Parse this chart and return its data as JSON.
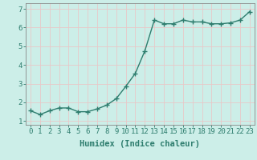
{
  "x": [
    0,
    1,
    2,
    3,
    4,
    5,
    6,
    7,
    8,
    9,
    10,
    11,
    12,
    13,
    14,
    15,
    16,
    17,
    18,
    19,
    20,
    21,
    22,
    23
  ],
  "y": [
    1.55,
    1.35,
    1.55,
    1.7,
    1.7,
    1.5,
    1.5,
    1.65,
    1.85,
    2.2,
    2.85,
    3.55,
    4.75,
    6.4,
    6.2,
    6.2,
    6.4,
    6.3,
    6.3,
    6.2,
    6.2,
    6.25,
    6.4,
    6.85
  ],
  "line_color": "#2e7d6e",
  "marker": "+",
  "marker_size": 4,
  "bg_color": "#cceee8",
  "grid_color": "#e8c8c8",
  "xlabel": "Humidex (Indice chaleur)",
  "xlim": [
    -0.5,
    23.5
  ],
  "ylim": [
    0.8,
    7.3
  ],
  "yticks": [
    1,
    2,
    3,
    4,
    5,
    6,
    7
  ],
  "xticks": [
    0,
    1,
    2,
    3,
    4,
    5,
    6,
    7,
    8,
    9,
    10,
    11,
    12,
    13,
    14,
    15,
    16,
    17,
    18,
    19,
    20,
    21,
    22,
    23
  ],
  "tick_label_fontsize": 6.5,
  "xlabel_fontsize": 7.5,
  "line_width": 1.0,
  "axes_color": "#2e7d6e",
  "tick_color": "#2e7d6e",
  "spine_color": "#888888"
}
